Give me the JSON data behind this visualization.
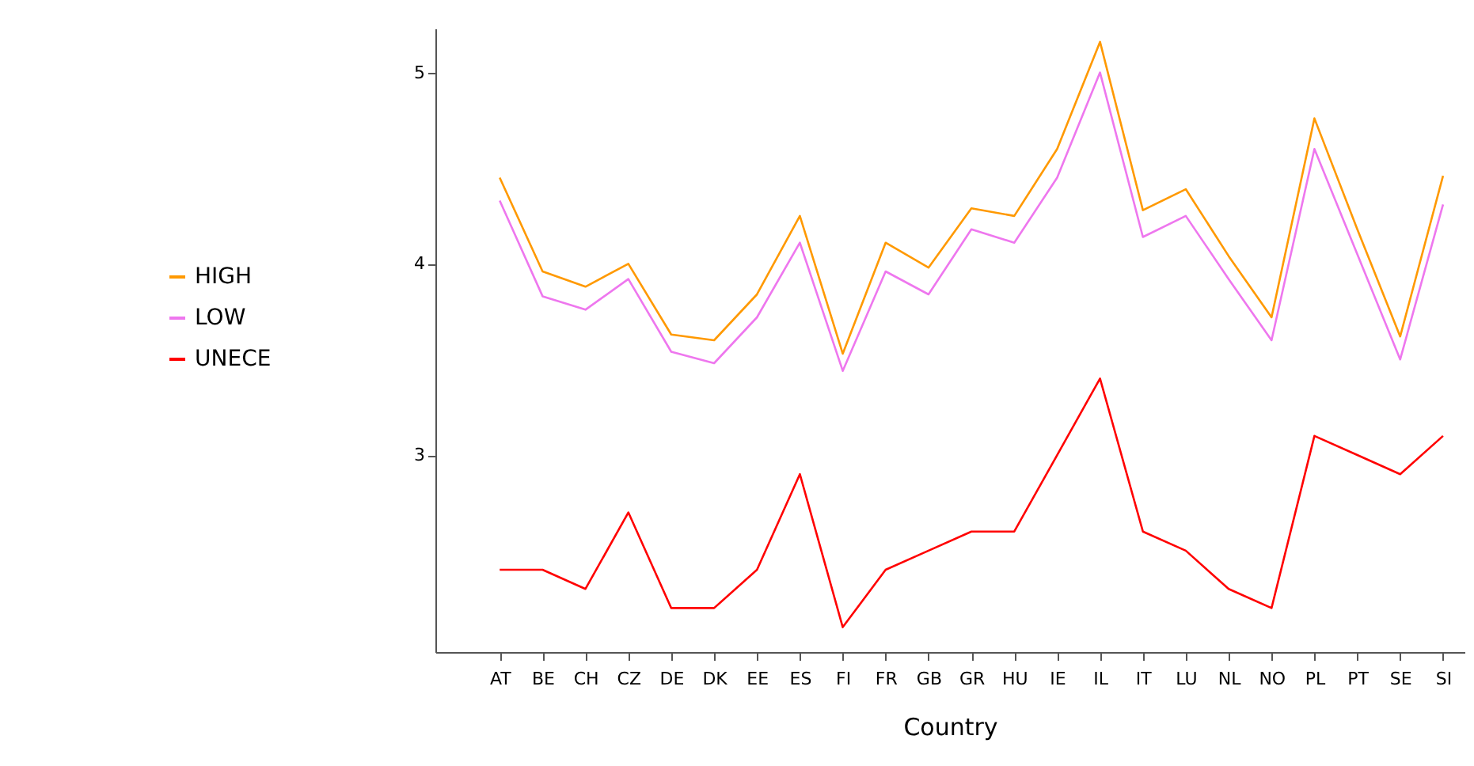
{
  "chart_data": {
    "type": "line",
    "xlabel": "Country",
    "categories": [
      "AT",
      "BE",
      "CH",
      "CZ",
      "DE",
      "DK",
      "EE",
      "ES",
      "FI",
      "FR",
      "GB",
      "GR",
      "HU",
      "IE",
      "IL",
      "IT",
      "LU",
      "NL",
      "NO",
      "PL",
      "PT",
      "SE",
      "SI"
    ],
    "series": [
      {
        "name": "HIGH",
        "color": "#ff9900",
        "values": [
          4.45,
          3.96,
          3.88,
          4.0,
          3.63,
          3.6,
          3.84,
          4.25,
          3.53,
          4.11,
          3.98,
          4.29,
          4.25,
          4.6,
          5.16,
          4.28,
          4.39,
          4.04,
          3.72,
          4.76,
          4.18,
          3.62,
          4.46
        ]
      },
      {
        "name": "LOW",
        "color": "#ee77ee",
        "values": [
          4.33,
          3.83,
          3.76,
          3.92,
          3.54,
          3.48,
          3.72,
          4.11,
          3.44,
          3.96,
          3.84,
          4.18,
          4.11,
          4.45,
          5.0,
          4.14,
          4.25,
          3.92,
          3.6,
          4.6,
          4.05,
          3.5,
          4.31
        ]
      },
      {
        "name": "UNECE",
        "color": "#ff0000",
        "values": [
          2.4,
          2.4,
          2.3,
          2.7,
          2.2,
          2.2,
          2.4,
          2.9,
          2.1,
          2.4,
          2.5,
          2.6,
          2.6,
          3.0,
          3.4,
          2.6,
          2.5,
          2.3,
          2.2,
          3.1,
          3.0,
          2.9,
          3.1
        ]
      }
    ],
    "ylim": [
      1.97,
      5.23
    ],
    "yticks": [
      3,
      4,
      5
    ],
    "grid": false,
    "legend": "left",
    "marker": "none",
    "line_style": "solid"
  }
}
